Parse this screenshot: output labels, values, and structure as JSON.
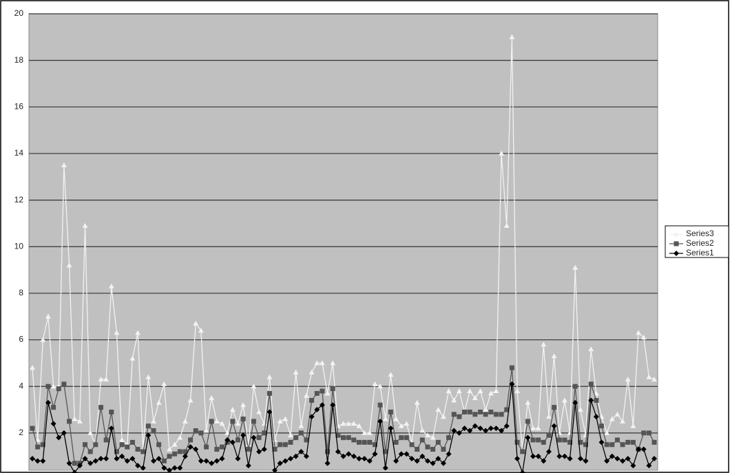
{
  "chart_data": {
    "type": "line",
    "ylim": [
      0.4,
      20
    ],
    "yticks": [
      2,
      4,
      6,
      8,
      10,
      12,
      14,
      16,
      18,
      20
    ],
    "grid": true,
    "legend": "right",
    "series": [
      {
        "name": "Series3",
        "color": "#f2f2f2",
        "marker": "triangle",
        "values": [
          4.8,
          1.7,
          6.0,
          7.0,
          4.0,
          4.0,
          13.5,
          9.2,
          2.6,
          2.5,
          10.9,
          2.0,
          1.5,
          4.3,
          4.3,
          8.3,
          6.3,
          1.7,
          1.5,
          5.2,
          6.3,
          1.3,
          4.4,
          2.5,
          3.3,
          4.1,
          1.3,
          1.5,
          1.8,
          2.5,
          3.4,
          6.7,
          6.4,
          2.1,
          3.5,
          2.5,
          2.4,
          2.0,
          3.0,
          2.4,
          3.2,
          1.5,
          4.0,
          2.9,
          2.4,
          4.4,
          1.7,
          2.5,
          2.6,
          1.9,
          4.6,
          2.3,
          3.6,
          4.6,
          5.0,
          5.0,
          3.7,
          5.0,
          2.3,
          2.4,
          2.4,
          2.4,
          2.3,
          2.0,
          2.0,
          4.1,
          4.0,
          2.6,
          4.5,
          2.6,
          2.3,
          2.4,
          1.6,
          3.3,
          2.1,
          1.9,
          1.8,
          3.0,
          2.7,
          3.8,
          3.4,
          3.8,
          2.9,
          3.8,
          3.5,
          3.8,
          3.0,
          3.7,
          3.8,
          14.0,
          10.9,
          19.0,
          3.8,
          1.3,
          3.3,
          2.2,
          2.2,
          5.8,
          2.7,
          5.3,
          2.0,
          3.4,
          2.0,
          9.1,
          3.0,
          1.9,
          5.6,
          3.7,
          2.7,
          2.0,
          2.6,
          2.8,
          2.5,
          4.3,
          2.3,
          6.3,
          6.1,
          4.4,
          4.3
        ]
      },
      {
        "name": "Series2",
        "color": "#555555",
        "marker": "square",
        "values": [
          2.2,
          1.4,
          1.5,
          4.0,
          3.1,
          3.9,
          4.1,
          2.5,
          0.7,
          0.7,
          1.5,
          1.2,
          1.5,
          3.1,
          1.7,
          2.9,
          1.2,
          1.5,
          1.4,
          1.6,
          1.3,
          1.2,
          2.3,
          2.1,
          1.5,
          0.8,
          1.0,
          1.1,
          1.2,
          1.2,
          1.7,
          2.1,
          2.0,
          1.4,
          2.5,
          1.3,
          1.4,
          1.6,
          2.5,
          1.7,
          2.6,
          1.3,
          2.5,
          1.8,
          2.0,
          3.7,
          1.3,
          1.5,
          1.5,
          1.6,
          1.8,
          2.0,
          1.7,
          3.4,
          3.7,
          3.8,
          1.2,
          3.9,
          1.9,
          1.8,
          1.8,
          1.7,
          1.6,
          1.6,
          1.6,
          1.5,
          3.2,
          1.2,
          2.9,
          1.6,
          1.8,
          1.8,
          1.5,
          1.3,
          1.7,
          1.4,
          1.3,
          1.6,
          1.3,
          1.8,
          2.8,
          2.7,
          2.9,
          2.9,
          2.8,
          2.9,
          2.8,
          2.9,
          2.8,
          2.8,
          3.0,
          4.8,
          1.6,
          1.2,
          2.5,
          1.7,
          1.7,
          1.6,
          1.9,
          3.1,
          1.7,
          1.7,
          1.6,
          4.0,
          1.6,
          1.5,
          4.1,
          3.4,
          2.3,
          1.5,
          1.5,
          1.7,
          1.5,
          1.6,
          1.6,
          1.3,
          2.0,
          2.0,
          1.6
        ]
      },
      {
        "name": "Series1",
        "color": "#000000",
        "marker": "diamond",
        "values": [
          0.9,
          0.8,
          0.8,
          3.3,
          2.4,
          1.8,
          2.0,
          0.7,
          0.3,
          0.6,
          0.9,
          0.7,
          0.8,
          0.9,
          0.9,
          2.2,
          0.9,
          1.0,
          0.8,
          0.9,
          0.6,
          0.5,
          1.9,
          0.8,
          0.9,
          0.5,
          0.4,
          0.5,
          0.5,
          1.0,
          1.4,
          1.3,
          0.8,
          0.8,
          0.7,
          0.8,
          0.9,
          1.7,
          1.6,
          0.9,
          1.9,
          0.6,
          1.8,
          1.2,
          1.3,
          2.9,
          0.4,
          0.7,
          0.8,
          0.9,
          1.0,
          1.2,
          1.0,
          2.7,
          3.0,
          3.2,
          0.7,
          3.2,
          1.2,
          1.0,
          1.1,
          1.0,
          0.9,
          0.9,
          0.8,
          1.1,
          2.5,
          0.5,
          2.2,
          0.8,
          1.1,
          1.1,
          0.9,
          0.8,
          1.0,
          0.8,
          0.7,
          0.9,
          0.7,
          1.1,
          2.1,
          2.0,
          2.2,
          2.1,
          2.3,
          2.2,
          2.1,
          2.2,
          2.2,
          2.1,
          2.3,
          4.1,
          0.9,
          0.3,
          1.8,
          1.0,
          1.0,
          0.8,
          1.2,
          2.3,
          1.0,
          1.0,
          0.9,
          3.3,
          0.9,
          0.8,
          3.4,
          2.7,
          1.6,
          0.8,
          1.0,
          0.9,
          0.8,
          0.9,
          0.6,
          1.3,
          1.3,
          0.6,
          0.9
        ]
      }
    ]
  }
}
